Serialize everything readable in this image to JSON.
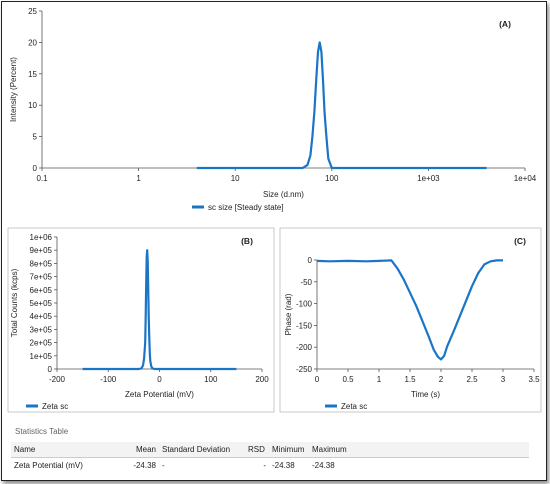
{
  "colors": {
    "series": "#1b75c6",
    "axis": "#555555",
    "panel_border": "#bbbbbb"
  },
  "chart_data": [
    {
      "panel": "(A)",
      "type": "line",
      "xscale": "log",
      "xlabel": "Size (d.nm)",
      "ylabel": "Intensity (Percent)",
      "xlim": [
        0.1,
        10000
      ],
      "ylim": [
        0,
        25
      ],
      "xticks": [
        0.1,
        1,
        10,
        100,
        1000,
        10000
      ],
      "xtick_labels": [
        "0.1",
        "1",
        "10",
        "100",
        "1e+03",
        "1e+04"
      ],
      "yticks": [
        0,
        5,
        10,
        15,
        20,
        25
      ],
      "grid": false,
      "legend_position": "bottom",
      "series": [
        {
          "name": "sc size [Steady state]",
          "x": [
            4,
            20,
            50,
            56,
            60,
            63,
            66,
            69,
            72,
            75,
            78,
            81,
            84,
            88,
            92,
            100,
            200,
            1000,
            4000
          ],
          "y": [
            0,
            0,
            0,
            0.5,
            2,
            5,
            9,
            14,
            18.5,
            20,
            18.5,
            14,
            9,
            5,
            1.5,
            0,
            0,
            0,
            0
          ]
        }
      ]
    },
    {
      "panel": "(B)",
      "type": "line",
      "xlabel": "Zeta Potential (mV)",
      "ylabel": "Total Counts (kcps)",
      "xlim": [
        -200,
        200
      ],
      "ylim": [
        0,
        1000000
      ],
      "xticks": [
        -200,
        -100,
        0,
        100,
        200
      ],
      "yticks": [
        0,
        100000,
        200000,
        300000,
        400000,
        500000,
        600000,
        700000,
        800000,
        900000,
        1000000
      ],
      "ytick_labels": [
        "0",
        "1e+05",
        "2e+05",
        "3e+05",
        "4e+05",
        "5e+05",
        "6e+05",
        "7e+05",
        "8e+05",
        "9e+05",
        "1e+06"
      ],
      "grid": false,
      "legend_position": "bottom-left",
      "series": [
        {
          "name": "Zeta sc",
          "x": [
            -150,
            -60,
            -40,
            -35,
            -32,
            -30,
            -28,
            -27,
            -26,
            -25,
            -24,
            -23,
            -22,
            -21,
            -20,
            -19,
            -18,
            -16,
            -14,
            -10,
            150
          ],
          "y": [
            0,
            0,
            0,
            5000,
            30000,
            80000,
            200000,
            400000,
            650000,
            850000,
            900000,
            820000,
            620000,
            400000,
            230000,
            120000,
            60000,
            20000,
            5000,
            0,
            0
          ]
        }
      ]
    },
    {
      "panel": "(C)",
      "type": "line",
      "xlabel": "Time (s)",
      "ylabel": "Phase (rad)",
      "xlim": [
        0,
        3.5
      ],
      "ylim": [
        -250,
        0
      ],
      "xticks": [
        0,
        0.5,
        1,
        1.5,
        2,
        2.5,
        3,
        3.5
      ],
      "yticks": [
        0,
        -50,
        -100,
        -150,
        -200,
        -250
      ],
      "grid": false,
      "legend_position": "bottom-left",
      "series": [
        {
          "name": "Zeta sc",
          "x": [
            0,
            0.2,
            0.5,
            0.8,
            1.0,
            1.2,
            1.3,
            1.4,
            1.5,
            1.6,
            1.7,
            1.8,
            1.88,
            1.95,
            2.0,
            2.05,
            2.1,
            2.2,
            2.3,
            2.4,
            2.5,
            2.6,
            2.7,
            2.8,
            2.9,
            3.0
          ],
          "y": [
            -2,
            -3,
            -2,
            -3,
            -2,
            -1,
            -20,
            -45,
            -75,
            -105,
            -140,
            -175,
            -205,
            -222,
            -228,
            -220,
            -198,
            -165,
            -130,
            -95,
            -60,
            -30,
            -10,
            -3,
            -1,
            -1
          ]
        }
      ]
    }
  ],
  "stats": {
    "title": "Statistics Table",
    "headers": [
      "Name",
      "Mean",
      "Standard Deviation",
      "RSD",
      "Minimum",
      "Maximum"
    ],
    "rows": [
      [
        "Zeta Potential (mV)",
        "-24.38",
        "-",
        "-",
        "-24.38",
        "-24.38"
      ]
    ]
  }
}
